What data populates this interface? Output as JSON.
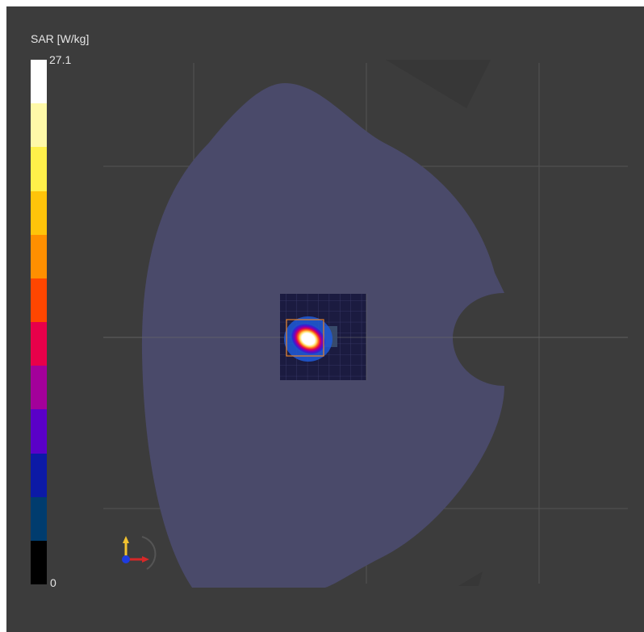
{
  "colorbar": {
    "title": "SAR [W/kg]",
    "max_label": "27.1",
    "min_label": "0",
    "colors": [
      "#ffffff",
      "#fff9a8",
      "#fff04a",
      "#ffc40a",
      "#ff8f00",
      "#ff4600",
      "#e8004a",
      "#a3009a",
      "#5a00c8",
      "#0c1aa6",
      "#003c6e",
      "#000000"
    ]
  },
  "scene": {
    "background_color": "#3c3c3c",
    "body_color": "#4a4a6a",
    "grid_color": "#6b6b6b",
    "mesh_color": "#1d1d44",
    "bounding_box_color": "#e8842a"
  },
  "axes_triad": {
    "icon": "axes-orientation-icon",
    "x_color": "#d62828",
    "y_color": "#f2c230",
    "z_color": "#1e3ce0"
  }
}
